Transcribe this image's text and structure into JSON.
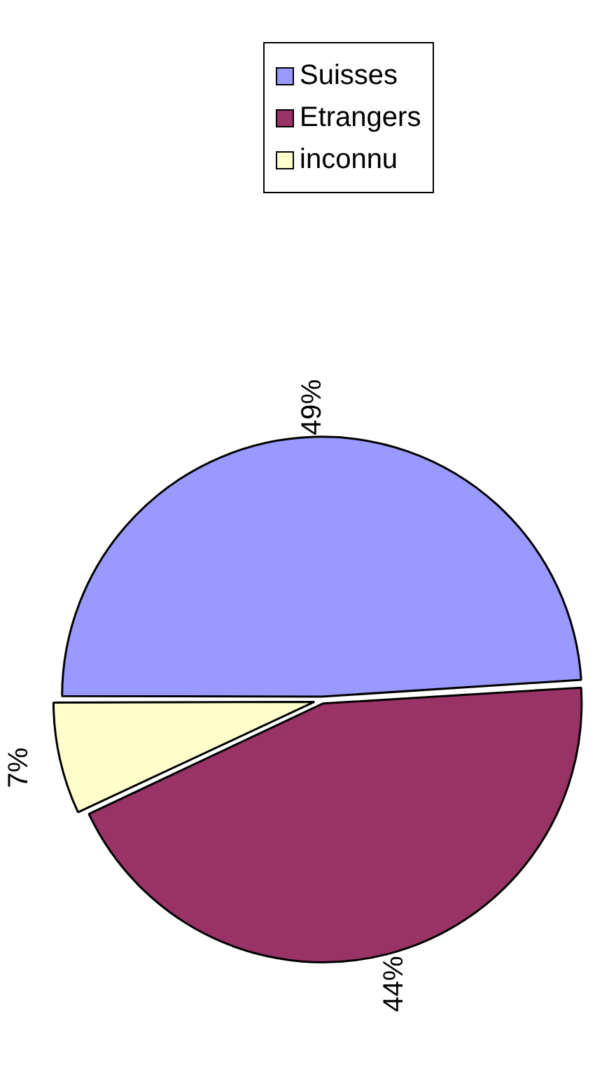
{
  "chart_data": {
    "type": "pie",
    "categories": [
      "Suisses",
      "Etrangers",
      "inconnu"
    ],
    "values": [
      49,
      44,
      7
    ],
    "colors": [
      "#9999ff",
      "#993366",
      "#ffffcc"
    ],
    "value_labels": [
      "49%",
      "44%",
      "7%"
    ],
    "legend": "right"
  }
}
